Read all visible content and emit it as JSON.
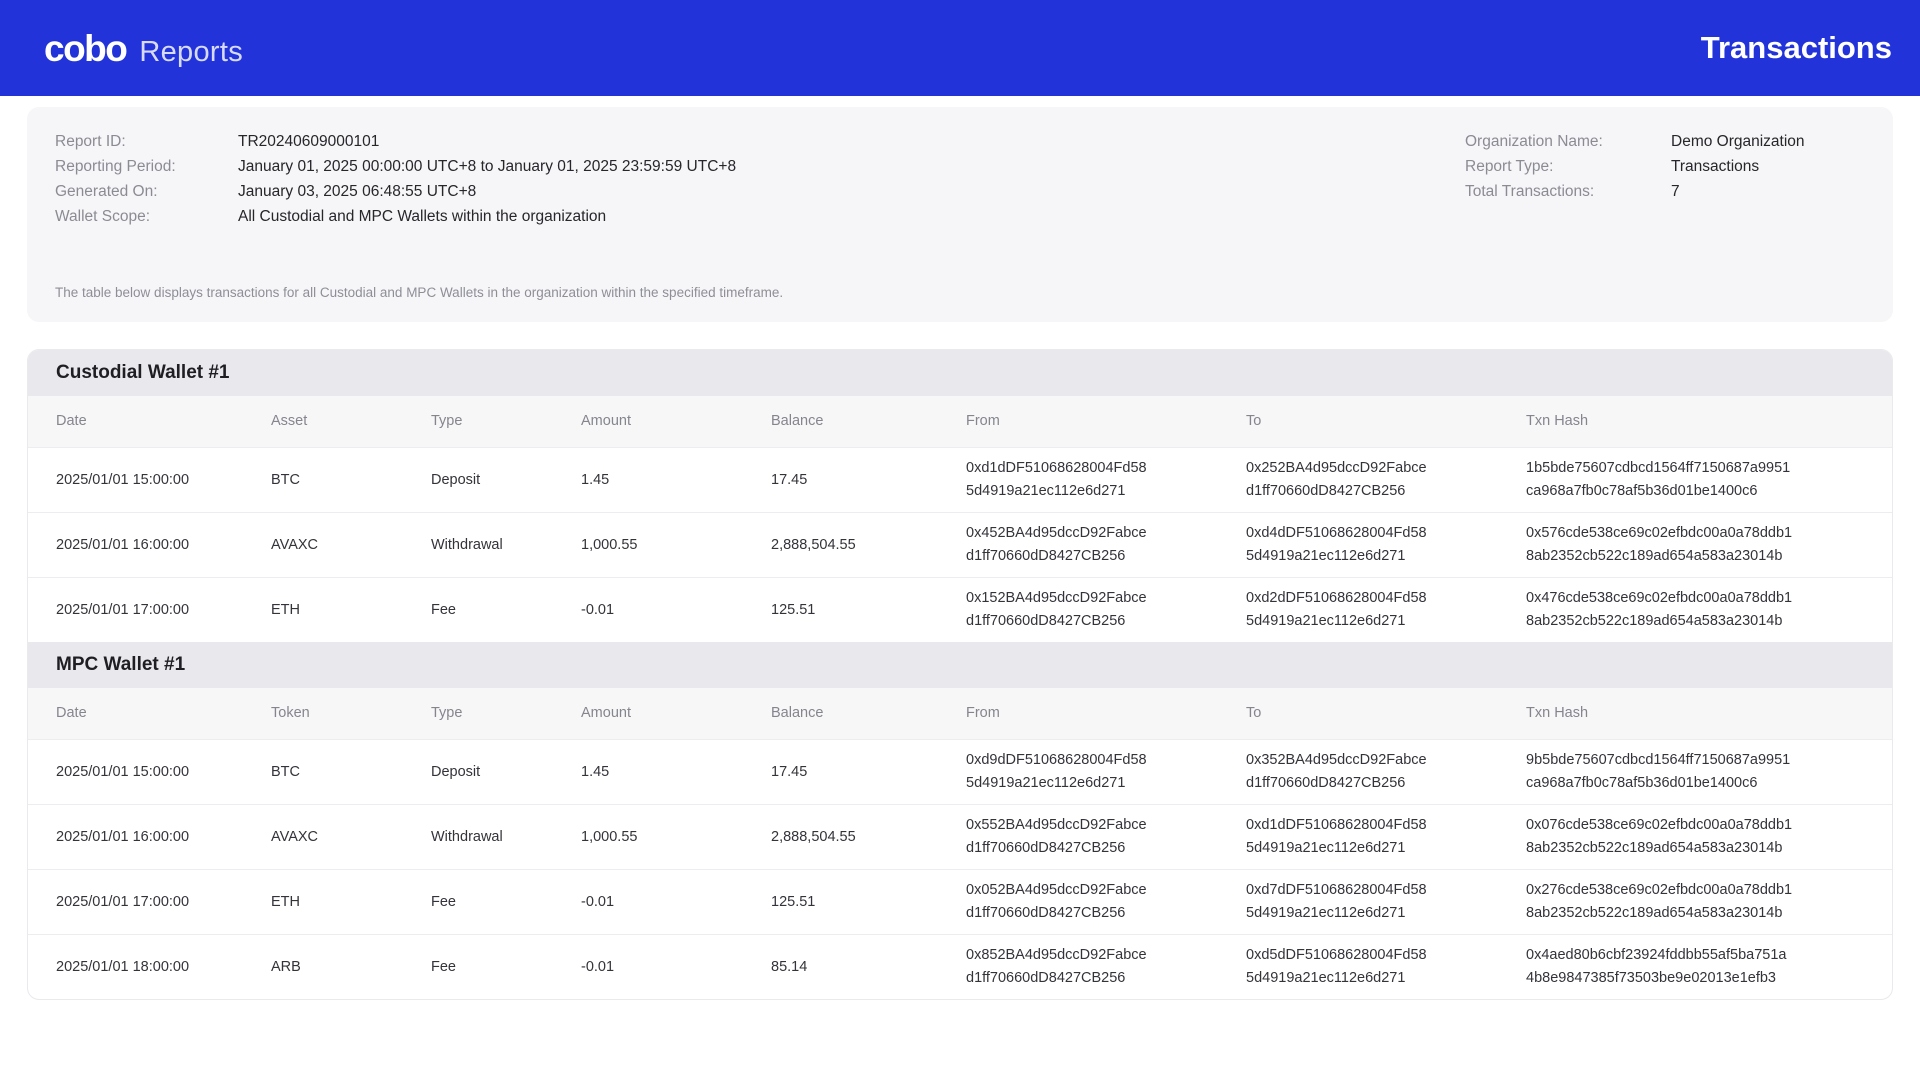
{
  "header": {
    "brand": "cobo",
    "product": "Reports",
    "title": "Transactions"
  },
  "summary": {
    "left": [
      {
        "label": "Report ID:",
        "value": "TR20240609000101"
      },
      {
        "label": "Reporting Period:",
        "value": "January 01, 2025 00:00:00 UTC+8 to January 01, 2025 23:59:59 UTC+8"
      },
      {
        "label": "Generated On:",
        "value": "January 03, 2025 06:48:55 UTC+8"
      },
      {
        "label": "Wallet Scope:",
        "value": "All Custodial and MPC Wallets within the organization"
      }
    ],
    "right": [
      {
        "label": "Organization Name:",
        "value": "Demo Organization"
      },
      {
        "label": "Report Type:",
        "value": "Transactions"
      },
      {
        "label": "Total Transactions:",
        "value": "7"
      }
    ],
    "note": "The table below displays transactions for all Custodial and MPC Wallets in the organization within the specified timeframe."
  },
  "sections": [
    {
      "title": "Custodial Wallet #1",
      "columns": [
        "Date",
        "Asset",
        "Type",
        "Amount",
        "Balance",
        "From",
        "To",
        "Txn Hash"
      ],
      "rows": [
        {
          "date": "2025/01/01 15:00:00",
          "asset": "BTC",
          "type": "Deposit",
          "amount": "1.45",
          "balance": "17.45",
          "from": "0xd1dDF51068628004Fd585d4919a21ec112e6d271",
          "to": "0x252BA4d95dccD92Fabced1ff70660dD8427CB256",
          "txn": "1b5bde75607cdbcd1564ff7150687a9951ca968a7fb0c78af5b36d01be1400c6"
        },
        {
          "date": "2025/01/01 16:00:00",
          "asset": "AVAXC",
          "type": "Withdrawal",
          "amount": "1,000.55",
          "balance": "2,888,504.55",
          "from": "0x452BA4d95dccD92Fabced1ff70660dD8427CB256",
          "to": "0xd4dDF51068628004Fd585d4919a21ec112e6d271",
          "txn": "0x576cde538ce69c02efbdc00a0a78ddb18ab2352cb522c189ad654a583a23014b"
        },
        {
          "date": "2025/01/01 17:00:00",
          "asset": "ETH",
          "type": "Fee",
          "amount": "-0.01",
          "balance": "125.51",
          "from": "0x152BA4d95dccD92Fabced1ff70660dD8427CB256",
          "to": "0xd2dDF51068628004Fd585d4919a21ec112e6d271",
          "txn": "0x476cde538ce69c02efbdc00a0a78ddb18ab2352cb522c189ad654a583a23014b"
        }
      ]
    },
    {
      "title": "MPC Wallet #1",
      "columns": [
        "Date",
        "Token",
        "Type",
        "Amount",
        "Balance",
        "From",
        "To",
        "Txn Hash"
      ],
      "rows": [
        {
          "date": "2025/01/01 15:00:00",
          "asset": "BTC",
          "type": "Deposit",
          "amount": "1.45",
          "balance": "17.45",
          "from": "0xd9dDF51068628004Fd585d4919a21ec112e6d271",
          "to": "0x352BA4d95dccD92Fabced1ff70660dD8427CB256",
          "txn": "9b5bde75607cdbcd1564ff7150687a9951ca968a7fb0c78af5b36d01be1400c6"
        },
        {
          "date": "2025/01/01 16:00:00",
          "asset": "AVAXC",
          "type": "Withdrawal",
          "amount": "1,000.55",
          "balance": "2,888,504.55",
          "from": "0x552BA4d95dccD92Fabced1ff70660dD8427CB256",
          "to": "0xd1dDF51068628004Fd585d4919a21ec112e6d271",
          "txn": "0x076cde538ce69c02efbdc00a0a78ddb18ab2352cb522c189ad654a583a23014b"
        },
        {
          "date": "2025/01/01 17:00:00",
          "asset": "ETH",
          "type": "Fee",
          "amount": "-0.01",
          "balance": "125.51",
          "from": "0x052BA4d95dccD92Fabced1ff70660dD8427CB256",
          "to": "0xd7dDF51068628004Fd585d4919a21ec112e6d271",
          "txn": "0x276cde538ce69c02efbdc00a0a78ddb18ab2352cb522c189ad654a583a23014b"
        },
        {
          "date": "2025/01/01 18:00:00",
          "asset": "ARB",
          "type": "Fee",
          "amount": "-0.01",
          "balance": "85.14",
          "from": "0x852BA4d95dccD92Fabced1ff70660dD8427CB256",
          "to": "0xd5dDF51068628004Fd585d4919a21ec112e6d271",
          "txn": "0x4aed80b6cbf23924fddbb55af5ba751a4b8e9847385f73503be9e02013e1efb3"
        }
      ]
    }
  ],
  "colors": {
    "header_bg": "#2234d9",
    "summary_card_bg": "#f6f6f8",
    "section_band_bg": "#e9e9ed",
    "table_head_bg": "#f7f7f8",
    "label_gray": "#8b8b94",
    "text_dark": "#26262b"
  }
}
